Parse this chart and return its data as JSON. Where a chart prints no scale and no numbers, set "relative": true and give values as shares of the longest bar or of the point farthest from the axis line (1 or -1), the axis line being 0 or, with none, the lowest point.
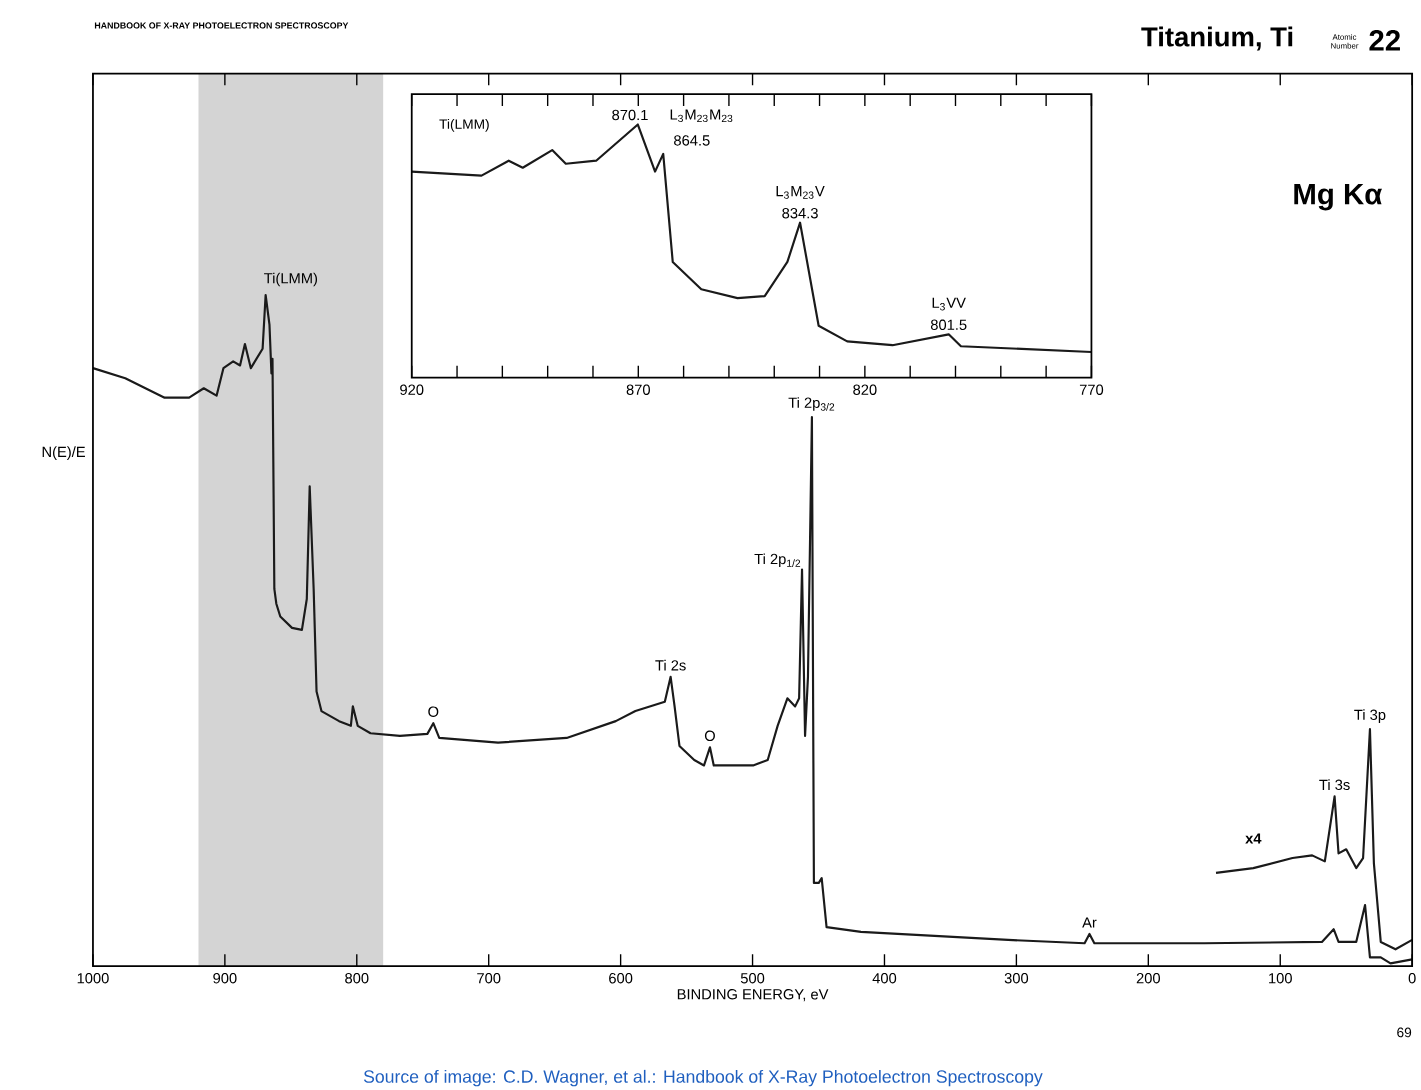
{
  "chart_data": [
    {
      "type": "line",
      "title": "Titanium, Ti",
      "subtitle": "HANDBOOK OF X-RAY PHOTOELECTRON SPECTROSCOPY",
      "xlabel": "BINDING ENERGY, eV",
      "ylabel": "N(E)/E",
      "relative": true,
      "xlim": [
        1000,
        0
      ],
      "xticks": [
        1000,
        900,
        800,
        700,
        600,
        500,
        400,
        300,
        200,
        100,
        0
      ],
      "bands": [
        {
          "axis": "x",
          "from": 920,
          "to": 780,
          "label": "Ti(LMM)",
          "color": "#d4d4d4"
        }
      ],
      "series": [
        {
          "color": "#1a1a1a",
          "x": [
            1000,
            975.5,
            945.7,
            927.1,
            916.0,
            906.3,
            901.1,
            893.7,
            888.5,
            884.8,
            880.3,
            871.4,
            869.1,
            866.2,
            864.7,
            863.9,
            862.5,
            861.0,
            858.0,
            849.1,
            841.6,
            837.9,
            835.7,
            832.7,
            830.5,
            826.8,
            813.4,
            804.5,
            803.0,
            799.3,
            789.6,
            767.3,
            746.5,
            742.0,
            737.5,
            692.9,
            640.9,
            603.7,
            588.8,
            566.5,
            562.1,
            559.1,
            555.4,
            544.2,
            536.8,
            532.3,
            529.4,
            499.6,
            488.5,
            481.0,
            473.6,
            467.7,
            464.7,
            462.5,
            460.2,
            458.0,
            455.0,
            453.5,
            449.8,
            447.6,
            443.9,
            417.8,
            306.3,
            248.3,
            244.6,
            240.9,
            157.6,
            68.4,
            59.5,
            55.8,
            42.4,
            35.7,
            32.0,
            23.8,
            16.4,
            0
          ],
          "values": [
            0.891,
            0.876,
            0.847,
            0.847,
            0.861,
            0.85,
            0.891,
            0.901,
            0.895,
            0.927,
            0.891,
            0.92,
            1.0,
            0.956,
            0.883,
            0.905,
            0.562,
            0.54,
            0.521,
            0.504,
            0.501,
            0.547,
            0.715,
            0.562,
            0.409,
            0.38,
            0.365,
            0.358,
            0.387,
            0.358,
            0.347,
            0.343,
            0.346,
            0.362,
            0.34,
            0.333,
            0.34,
            0.365,
            0.38,
            0.394,
            0.431,
            0.387,
            0.328,
            0.307,
            0.299,
            0.326,
            0.299,
            0.299,
            0.307,
            0.358,
            0.399,
            0.387,
            0.399,
            0.591,
            0.343,
            0.431,
            0.818,
            0.124,
            0.124,
            0.131,
            0.058,
            0.051,
            0.039,
            0.034,
            0.048,
            0.034,
            0.034,
            0.036,
            0.055,
            0.036,
            0.036,
            0.091,
            0.013,
            0.013,
            0.004,
            0.01
          ]
        },
        {
          "name": "x4",
          "color": "#1a1a1a",
          "x": [
            148.7,
            120.4,
            90.7,
            75.8,
            66.2,
            58.8,
            55.8,
            50.0,
            42.4,
            37.2,
            32.0,
            29.0,
            23.8,
            12.6,
            0
          ],
          "values": [
            0.139,
            0.146,
            0.161,
            0.165,
            0.156,
            0.253,
            0.168,
            0.174,
            0.146,
            0.161,
            0.353,
            0.153,
            0.036,
            0.025,
            0.039
          ]
        }
      ],
      "annotations": [
        {
          "text": "O",
          "x": 742.0,
          "y": 0.362
        },
        {
          "text": "Ti 2s",
          "x": 562.1,
          "y": 0.431
        },
        {
          "text": "O",
          "x": 532.3,
          "y": 0.326
        },
        {
          "text": "Ti 2p$_{1/2}$",
          "x": 462.5,
          "y": 0.591
        },
        {
          "text": "Ti 2p$_{3/2}$",
          "x": 455.0,
          "y": 0.818
        },
        {
          "text": "Ar",
          "x": 244.6,
          "y": 0.048
        },
        {
          "text": "Ti 3s",
          "x": 58.8,
          "y": 0.253
        },
        {
          "text": "Ti 3p",
          "x": 32.0,
          "y": 0.353
        },
        "Mg Kα",
        "Atomic Number",
        "22",
        "69",
        "Source of image: C.D. Wagner, et al.: Handbook of X-Ray Photoelectron Spectroscopy"
      ]
    },
    {
      "type": "line",
      "relative": true,
      "xlim": [
        920,
        770
      ],
      "xticks": [
        920,
        {
          "value": 910,
          "label": null
        },
        {
          "value": 900,
          "label": null
        },
        {
          "value": 890,
          "label": null
        },
        {
          "value": 880,
          "label": null
        },
        870,
        {
          "value": 860,
          "label": null
        },
        {
          "value": 850,
          "label": null
        },
        {
          "value": 840,
          "label": null
        },
        {
          "value": 830,
          "label": null
        },
        820,
        {
          "value": 810,
          "label": null
        },
        {
          "value": 800,
          "label": null
        },
        {
          "value": 790,
          "label": null
        },
        {
          "value": 780,
          "label": null
        },
        770
      ],
      "series": [
        {
          "color": "#1a1a1a",
          "x": [
            920,
            904.6,
            898.6,
            895.5,
            889.0,
            886.0,
            879.3,
            870.1,
            866.3,
            864.5,
            862.4,
            856.1,
            848.1,
            842.1,
            837.1,
            834.3,
            830.2,
            823.9,
            813.9,
            801.5,
            798.8,
            770
          ],
          "values": [
            0.814,
            0.798,
            0.857,
            0.829,
            0.899,
            0.845,
            0.857,
            1.0,
            0.814,
            0.884,
            0.457,
            0.349,
            0.314,
            0.322,
            0.457,
            0.612,
            0.205,
            0.143,
            0.128,
            0.171,
            0.124,
            0.101
          ]
        }
      ],
      "annotations": [
        "Ti(LMM)",
        {
          "text": "870.1",
          "x": 870.1,
          "y": 1.0
        },
        {
          "text": "L$_{3}$M$_{23}$M$_{23}$",
          "x": 864.5,
          "y": 0.884
        },
        {
          "text": "864.5",
          "x": 864.5,
          "y": 0.884
        },
        {
          "text": "L$_{3}$M$_{23}$V",
          "x": 834.3,
          "y": 0.612
        },
        {
          "text": "834.3",
          "x": 834.3,
          "y": 0.612
        },
        {
          "text": "L$_{3}$VV",
          "x": 801.5,
          "y": 0.171
        },
        {
          "text": "801.5",
          "x": 801.5,
          "y": 0.171
        }
      ]
    }
  ]
}
